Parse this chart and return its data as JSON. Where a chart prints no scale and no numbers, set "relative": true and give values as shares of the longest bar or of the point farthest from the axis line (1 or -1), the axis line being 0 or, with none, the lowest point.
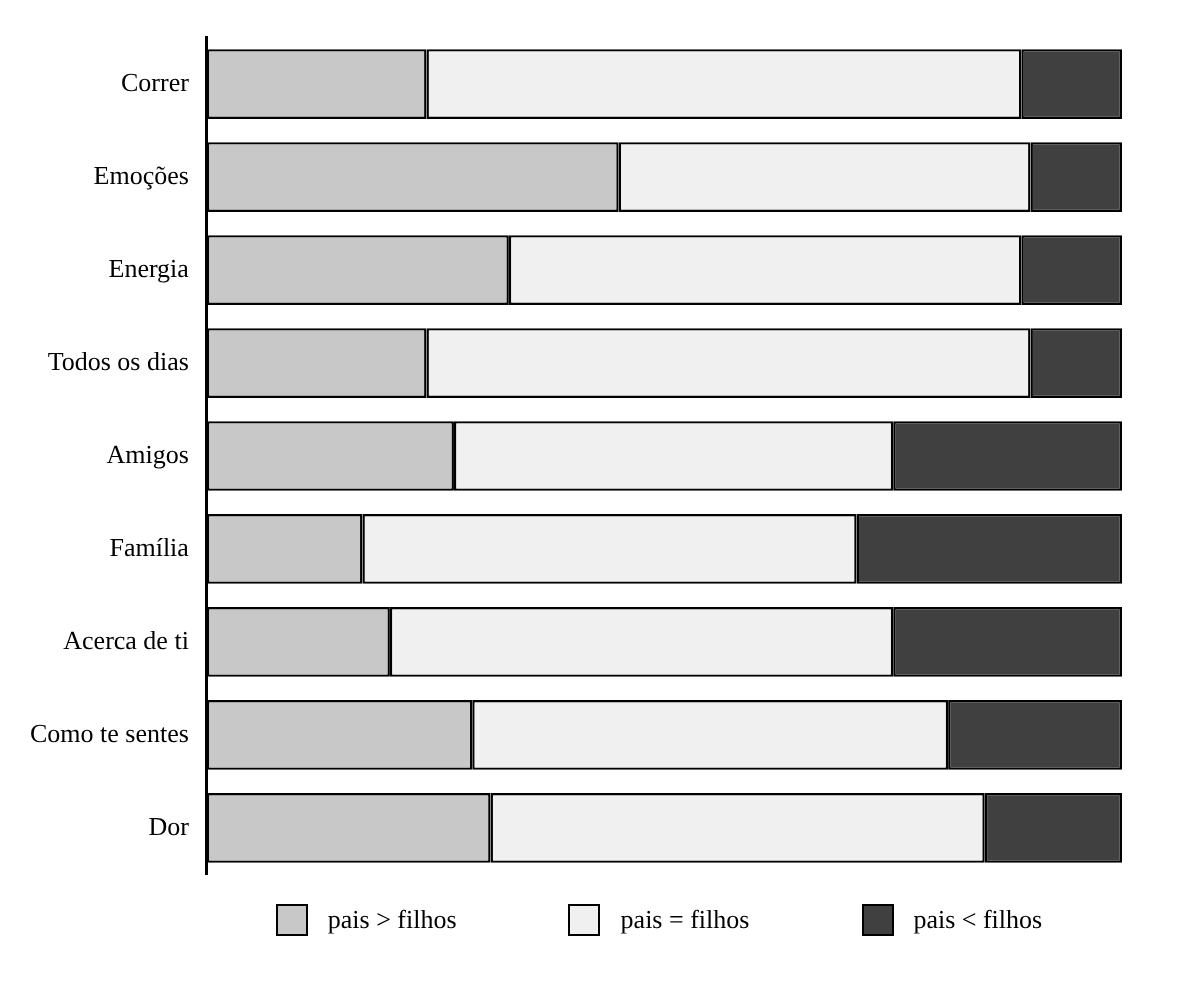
{
  "chart_data": {
    "type": "bar",
    "orientation": "horizontal",
    "stacked": true,
    "relative": true,
    "legend": "bottom",
    "categories": [
      "Correr",
      "Emoções",
      "Energia",
      "Todos os dias",
      "Amigos",
      "Família",
      "Acerca de ti",
      "Como te sentes",
      "Dor"
    ],
    "series": [
      {
        "name": "pais > filhos",
        "color": "#c8c8c8",
        "values": [
          0.24,
          0.45,
          0.33,
          0.24,
          0.27,
          0.17,
          0.2,
          0.29,
          0.31
        ]
      },
      {
        "name": "pais = filhos",
        "color": "#f0f0f0",
        "values": [
          0.65,
          0.45,
          0.56,
          0.66,
          0.48,
          0.54,
          0.55,
          0.52,
          0.54
        ]
      },
      {
        "name": "pais < filhos",
        "color": "#404040",
        "values": [
          0.11,
          0.1,
          0.11,
          0.1,
          0.25,
          0.29,
          0.25,
          0.19,
          0.15
        ]
      }
    ]
  }
}
